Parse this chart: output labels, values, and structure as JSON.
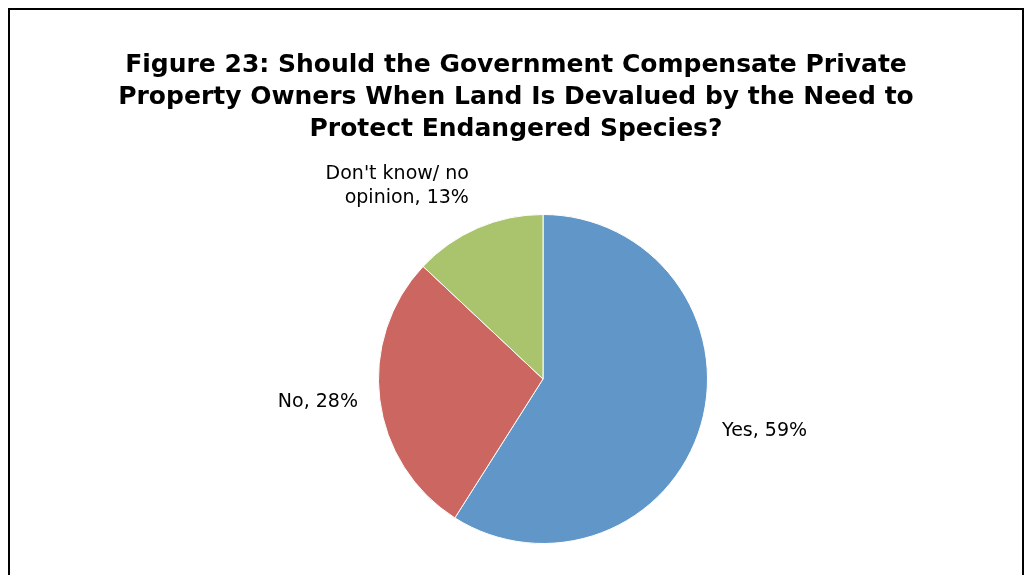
{
  "chart_data": {
    "type": "pie",
    "title": "Figure 23: Should the Government Compensate Private Property Owners When Land Is Devalued by the Need to Protect Endangered Species?",
    "categories": [
      "Yes",
      "No",
      "Don't know/ no opinion"
    ],
    "values": [
      59,
      28,
      13
    ],
    "colors": [
      "#6196c9",
      "#cc6660",
      "#a9c46d"
    ],
    "value_labels": [
      "59%",
      "28%",
      "13%"
    ],
    "legend": false
  }
}
